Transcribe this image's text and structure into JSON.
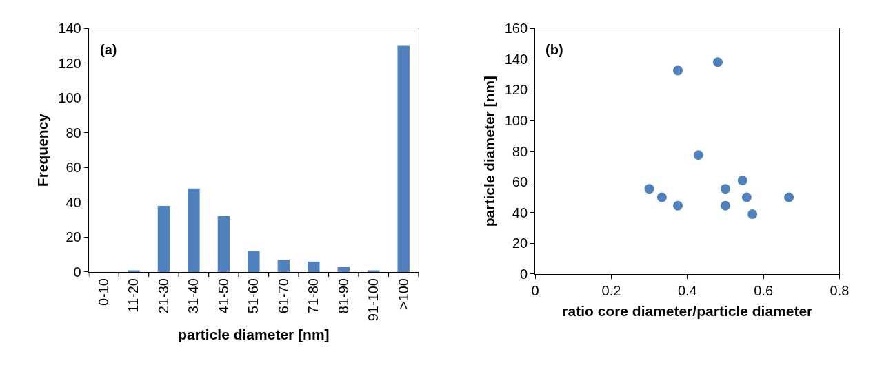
{
  "chart_data": [
    {
      "type": "bar",
      "categories": [
        "0-10",
        "11-20",
        "21-30",
        "31-40",
        "41-50",
        "51-60",
        "61-70",
        "71-80",
        "81-90",
        "91-100",
        ">100"
      ],
      "values": [
        0,
        1,
        38,
        48,
        32,
        12,
        7,
        6,
        3,
        1,
        130
      ],
      "color": "#4f81bd",
      "xlabel": "particle diameter [nm]",
      "ylabel": "Frequency",
      "ylim": [
        0,
        140
      ],
      "yticks": [
        0,
        20,
        40,
        60,
        80,
        100,
        120,
        140
      ],
      "annotations": [
        "(a)"
      ]
    },
    {
      "type": "scatter",
      "x": [
        0.3,
        0.333,
        0.375,
        0.375,
        0.429,
        0.48,
        0.5,
        0.5,
        0.545,
        0.556,
        0.571,
        0.667
      ],
      "values": [
        55.5,
        50,
        44.5,
        132.5,
        77.5,
        138,
        55.5,
        44.5,
        61,
        50,
        39,
        50
      ],
      "color": "#4f81bd",
      "marker": "circle",
      "xlabel": "ratio core diameter/particle diameter",
      "ylabel": "particle diameter [nm]",
      "xlim": [
        0,
        0.8
      ],
      "xticks": [
        0,
        0.2,
        0.4,
        0.6,
        0.8
      ],
      "ylim": [
        0,
        160
      ],
      "yticks": [
        0,
        20,
        40,
        60,
        80,
        100,
        120,
        140,
        160
      ],
      "annotations": [
        "(b)"
      ]
    }
  ]
}
